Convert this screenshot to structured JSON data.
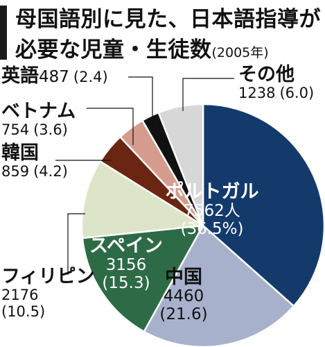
{
  "title": {
    "line1": "母国語別に見た、日本語指導が",
    "line2_main": "必要な児童・生徒数",
    "line2_sub": "(2005年)"
  },
  "colors": {
    "ポルトガル": "#133a6b",
    "中国": "#a7b1cc",
    "スペイン": "#2d6b46",
    "フィリピン": "#dde5c8",
    "韓国": "#6a2613",
    "ベトナム": "#d59c8d",
    "英語": "#111111",
    "その他": "#d7d7d7"
  },
  "chart_data": {
    "type": "pie",
    "start_angle": "12 o'clock",
    "direction": "clockwise",
    "slices": [
      {
        "name": "ポルトガル",
        "name_display": "ポルトガル",
        "value": 7562,
        "value_display": "7562人",
        "percent": 36.5,
        "percent_display": "(36.5%)"
      },
      {
        "name": "中国",
        "name_display": "中国",
        "value": 4460,
        "value_display": "4460",
        "percent": 21.6,
        "percent_display": "(21.6)"
      },
      {
        "name": "スペイン",
        "name_display": "スペイン",
        "value": 3156,
        "value_display": "3156",
        "percent": 15.3,
        "percent_display": "(15.3)"
      },
      {
        "name": "フィリピン",
        "name_display": "フィリピン",
        "value": 2176,
        "value_display": "2176",
        "percent": 10.5,
        "percent_display": "(10.5)"
      },
      {
        "name": "韓国",
        "name_display": "韓国",
        "value": 859,
        "value_display": "859",
        "percent": 4.2,
        "percent_display": "(4.2)"
      },
      {
        "name": "ベトナム",
        "name_display": "ベトナム",
        "value": 754,
        "value_display": "754",
        "percent": 3.6,
        "percent_display": "(3.6)"
      },
      {
        "name": "英語",
        "name_display": "英語",
        "value": 487,
        "value_display": "487",
        "percent": 2.4,
        "percent_display": "(2.4)"
      },
      {
        "name": "その他",
        "name_display": "その他",
        "value": 1238,
        "value_display": "1238",
        "percent": 6.0,
        "percent_display": "(6.0)"
      }
    ]
  }
}
